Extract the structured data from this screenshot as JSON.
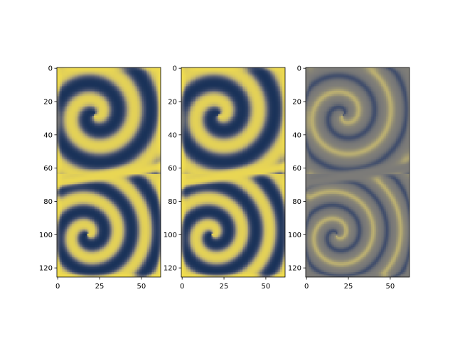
{
  "chart_data": [
    {
      "type": "heatmap",
      "title": "",
      "xlabel": "",
      "ylabel": "",
      "x_ticks": [
        0,
        25,
        50
      ],
      "y_ticks": [
        0,
        20,
        40,
        60,
        80,
        100,
        120
      ],
      "xlim": [
        -0.5,
        61.5
      ],
      "ylim": [
        125.5,
        -0.5
      ],
      "grid": false,
      "colormap": "cividis",
      "description_values": "swirling flow field, two vortices (upper and lower), bright band near row 65"
    },
    {
      "type": "heatmap",
      "title": "",
      "xlabel": "",
      "ylabel": "",
      "x_ticks": [
        0,
        25,
        50
      ],
      "y_ticks": [
        0,
        20,
        40,
        60,
        80,
        100,
        120
      ],
      "xlim": [
        -0.5,
        61.5
      ],
      "ylim": [
        125.5,
        -0.5
      ],
      "grid": false,
      "colormap": "cividis"
    },
    {
      "type": "heatmap",
      "title": "",
      "xlabel": "",
      "ylabel": "",
      "x_ticks": [
        0,
        25,
        50
      ],
      "y_ticks": [
        0,
        20,
        40,
        60,
        80,
        100,
        120
      ],
      "xlim": [
        -0.5,
        61.5
      ],
      "ylim": [
        125.5,
        -0.5
      ],
      "grid": false,
      "colormap": "cividis",
      "note_values": "difference of first two fields, mostly near zero (gray)"
    }
  ],
  "colors": {
    "dark": "#00204c",
    "mid": "#7c7b78",
    "bright": "#ffe945"
  }
}
